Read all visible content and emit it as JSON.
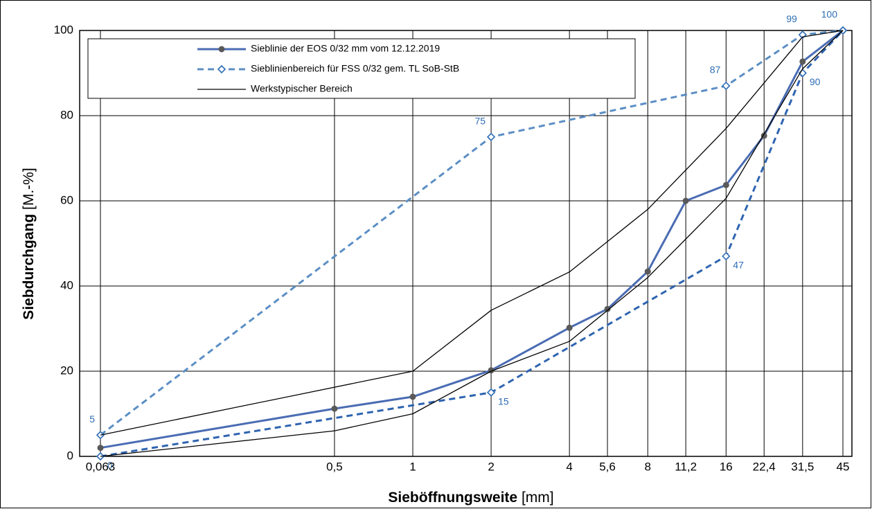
{
  "chart_data": {
    "type": "line",
    "xlabel": {
      "main": "Sieböffnungsweite",
      "unit": "[mm]"
    },
    "ylabel": {
      "main": "Siebdurchgang",
      "unit": "[M.-%]"
    },
    "xscale": "log",
    "xlim": [
      0.063,
      45
    ],
    "xticks": [
      {
        "value": 0.063,
        "label": "0,063"
      },
      {
        "value": 0.5,
        "label": "0,5"
      },
      1,
      2,
      4,
      {
        "value": 5.6,
        "label": "5,6"
      },
      8,
      {
        "value": 11.2,
        "label": "11,2"
      },
      16,
      {
        "value": 22.4,
        "label": "22,4"
      },
      {
        "value": 31.5,
        "label": "31,5"
      },
      45
    ],
    "ylim": [
      0,
      100
    ],
    "yticks": [
      0,
      20,
      40,
      60,
      80,
      100
    ],
    "grid": true,
    "legend": "top-left",
    "series": [
      {
        "name": "Sieblinie der EOS 0/32 mm vom 12.12.2019",
        "color": "#4a6cb3",
        "marker": "circle",
        "marker_color": "#595959",
        "width": 3,
        "dash": false,
        "x": [
          0.063,
          0.5,
          1,
          2,
          4,
          5.6,
          8,
          11.2,
          16,
          22.4,
          31.5,
          45
        ],
        "values": [
          2,
          11.2,
          14,
          20.2,
          30.2,
          34.6,
          43.4,
          60,
          63.7,
          75.3,
          92.7,
          100
        ]
      },
      {
        "name": "Sieblinienbereich für FSS 0/32 gem. TL SoB-StB",
        "color": "#5b8ec4",
        "marker": "diamond",
        "marker_color": "#2e6db4",
        "width": 3,
        "dash": true,
        "label_position": "above-left",
        "x": [
          0.063,
          2,
          16,
          31.5,
          45
        ],
        "values": [
          5,
          75,
          87,
          99,
          100
        ],
        "value_labels": [
          "5",
          "75",
          "87",
          "99",
          "100"
        ]
      },
      {
        "color": "#2e64b0",
        "marker": "diamond",
        "marker_color": "#2e6db4",
        "width": 3,
        "dash": true,
        "label_position": "below-right",
        "x": [
          0.063,
          2,
          16,
          31.5,
          45
        ],
        "values": [
          0,
          15,
          47,
          90,
          100
        ],
        "value_labels": [
          "0",
          "15",
          "47",
          "90",
          null
        ]
      },
      {
        "name": "Werkstypischer Bereich",
        "color": "#000000",
        "marker": "none",
        "width": 1.3,
        "dash": false,
        "x": [
          0.063,
          1,
          2,
          4,
          8,
          16,
          31.5,
          45
        ],
        "values": [
          5,
          20,
          34.3,
          43.3,
          58,
          77,
          98.5,
          100
        ]
      },
      {
        "color": "#000000",
        "marker": "none",
        "width": 1.3,
        "dash": false,
        "x": [
          0.063,
          0.5,
          1,
          2,
          4,
          8,
          16,
          31.5,
          45
        ],
        "values": [
          0,
          6,
          10,
          20,
          27,
          42,
          60.6,
          91,
          100
        ]
      }
    ]
  }
}
